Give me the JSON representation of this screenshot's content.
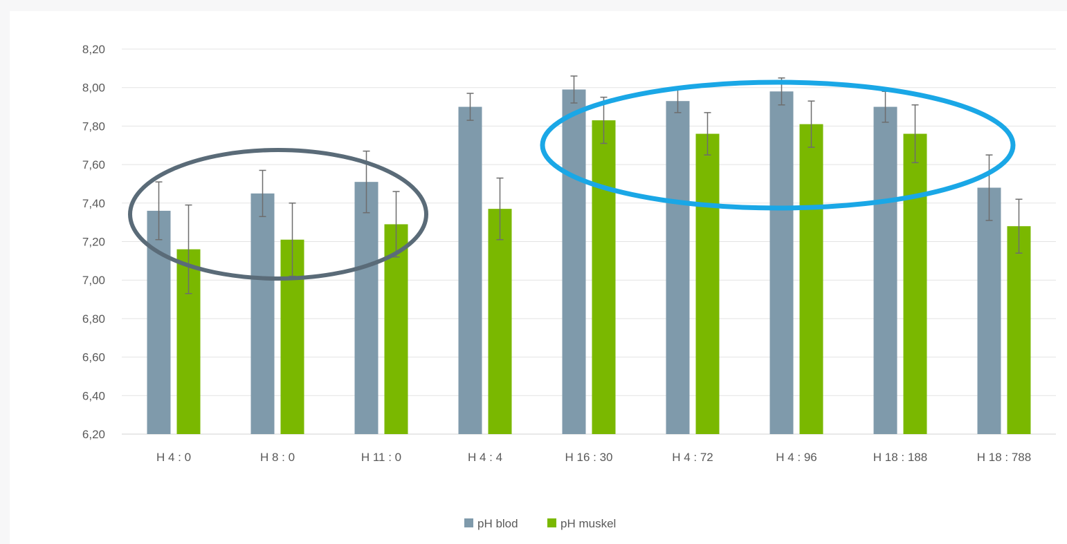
{
  "chart_data": {
    "type": "bar",
    "title": "",
    "xlabel": "",
    "ylabel": "",
    "ylim": [
      6.2,
      8.2
    ],
    "yticks": [
      "6,20",
      "6,40",
      "6,60",
      "6,80",
      "7,00",
      "7,20",
      "7,40",
      "7,60",
      "7,80",
      "8,00",
      "8,20"
    ],
    "categories": [
      "H 4 : 0",
      "H 8 : 0",
      "H 11 : 0",
      "H 4 : 4",
      "H 16 : 30",
      "H 4 : 72",
      "H 4 : 96",
      "H 18 : 188",
      "H 18 : 788"
    ],
    "series": [
      {
        "name": "pH blod",
        "color": "#7f9aab",
        "values": [
          7.36,
          7.45,
          7.51,
          7.9,
          7.99,
          7.93,
          7.98,
          7.9,
          7.48
        ],
        "error": [
          0.15,
          0.12,
          0.16,
          0.07,
          0.07,
          0.06,
          0.07,
          0.08,
          0.17
        ]
      },
      {
        "name": "pH muskel",
        "color": "#7ab800",
        "values": [
          7.16,
          7.21,
          7.29,
          7.37,
          7.83,
          7.76,
          7.81,
          7.76,
          7.28
        ],
        "error": [
          0.23,
          0.19,
          0.17,
          0.16,
          0.12,
          0.11,
          0.12,
          0.15,
          0.14
        ]
      }
    ],
    "grid": true,
    "legend_position": "bottom",
    "annotations": [
      {
        "type": "ellipse",
        "color": "#5a6b78",
        "covers": [
          "H 4 : 0",
          "H 8 : 0",
          "H 11 : 0"
        ]
      },
      {
        "type": "ellipse",
        "color": "#1aa7e6",
        "covers": [
          "H 16 : 30",
          "H 4 : 72",
          "H 4 : 96",
          "H 18 : 188"
        ]
      }
    ]
  }
}
